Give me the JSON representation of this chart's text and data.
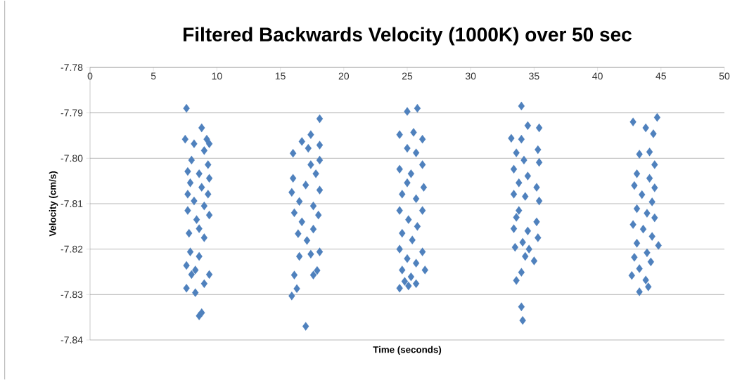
{
  "chart_data": {
    "type": "scatter",
    "title": "Filtered Backwards Velocity (1000K) over 50 sec",
    "xlabel": "Time (seconds)",
    "ylabel": "Velocity (cm/s)",
    "xlim": [
      0,
      50
    ],
    "ylim": [
      -7.84,
      -7.78
    ],
    "xticks": [
      0,
      5,
      10,
      15,
      20,
      25,
      30,
      35,
      40,
      45,
      50
    ],
    "yticks": [
      {
        "value": -7.84,
        "label": "-7.84"
      },
      {
        "value": -7.83,
        "label": "-7.83"
      },
      {
        "value": -7.82,
        "label": "-7.82"
      },
      {
        "value": -7.81,
        "label": "-7.81"
      },
      {
        "value": -7.8,
        "label": "-7.80"
      },
      {
        "value": -7.79,
        "label": "-7.79"
      },
      {
        "value": -7.78,
        "label": "-7.78"
      }
    ],
    "grid": "y",
    "marker": "diamond",
    "series": [
      {
        "color": "#4f81bd",
        "x": [
          7.6,
          8.8,
          7.5,
          9.2,
          8.2,
          9.4,
          9.0,
          8.0,
          9.3,
          7.7,
          8.6,
          9.4,
          7.9,
          8.8,
          7.7,
          9.3,
          8.2,
          9.0,
          7.7,
          9.4,
          8.4,
          7.8,
          9.0,
          8.6,
          7.9,
          8.6,
          7.6,
          8.3,
          8.0,
          9.4,
          9.0,
          7.6,
          8.3,
          8.6,
          8.8,
          18.1,
          17.4,
          16.7,
          18.1,
          16.0,
          17.2,
          18.1,
          17.4,
          16.0,
          17.8,
          17.0,
          15.9,
          18.1,
          16.5,
          17.6,
          16.1,
          18.0,
          16.7,
          17.6,
          16.4,
          17.1,
          18.1,
          16.5,
          17.4,
          17.9,
          17.6,
          16.1,
          16.3,
          15.9,
          17.0,
          25.0,
          25.8,
          24.4,
          25.5,
          26.2,
          25.0,
          25.7,
          26.2,
          24.4,
          25.3,
          25.0,
          26.3,
          24.6,
          25.7,
          24.4,
          26.2,
          25.1,
          25.8,
          24.6,
          25.4,
          24.4,
          26.2,
          25.0,
          25.7,
          24.6,
          26.4,
          25.3,
          24.8,
          25.7,
          24.4,
          25.1,
          34.0,
          34.5,
          35.4,
          33.2,
          34.0,
          35.3,
          33.6,
          34.2,
          35.4,
          33.4,
          34.5,
          33.8,
          35.2,
          33.4,
          34.3,
          35.4,
          33.8,
          33.6,
          35.2,
          33.4,
          34.5,
          35.3,
          34.1,
          33.5,
          34.6,
          34.3,
          35.0,
          34.0,
          33.6,
          34.0,
          34.1,
          42.8,
          44.7,
          43.8,
          44.4,
          43.3,
          44.1,
          44.5,
          43.1,
          44.1,
          42.9,
          44.5,
          43.5,
          44.3,
          43.1,
          43.9,
          44.5,
          42.8,
          43.6,
          44.3,
          43.1,
          44.8,
          43.9,
          42.9,
          44.2,
          43.3,
          42.7,
          43.8,
          44.0,
          43.3
        ],
        "values": [
          -7.789,
          -7.7933,
          -7.7958,
          -7.7958,
          -7.7968,
          -7.7968,
          -7.7983,
          -7.8004,
          -7.8014,
          -7.8029,
          -7.8034,
          -7.8044,
          -7.8054,
          -7.8064,
          -7.8079,
          -7.8079,
          -7.8094,
          -7.8105,
          -7.8115,
          -7.8125,
          -7.8135,
          -7.8165,
          -7.8175,
          -7.8155,
          -7.8206,
          -7.8216,
          -7.8236,
          -7.8246,
          -7.8256,
          -7.8256,
          -7.8276,
          -7.8286,
          -7.8296,
          -7.8347,
          -7.834,
          -7.7913,
          -7.7948,
          -7.7963,
          -7.7971,
          -7.7989,
          -7.7978,
          -7.8004,
          -7.8014,
          -7.8044,
          -7.8034,
          -7.8059,
          -7.8075,
          -7.807,
          -7.8095,
          -7.8105,
          -7.812,
          -7.8125,
          -7.814,
          -7.8156,
          -7.8166,
          -7.8181,
          -7.8206,
          -7.8216,
          -7.8211,
          -7.8247,
          -7.8257,
          -7.8257,
          -7.8287,
          -7.8303,
          -7.837,
          -7.7897,
          -7.789,
          -7.7948,
          -7.7943,
          -7.7958,
          -7.7978,
          -7.7988,
          -7.8014,
          -7.8024,
          -7.8034,
          -7.8054,
          -7.8064,
          -7.8079,
          -7.8089,
          -7.8115,
          -7.8115,
          -7.8135,
          -7.815,
          -7.8165,
          -7.818,
          -7.82,
          -7.8206,
          -7.8221,
          -7.8231,
          -7.8246,
          -7.8246,
          -7.8261,
          -7.8271,
          -7.8276,
          -7.8286,
          -7.8281,
          -7.7885,
          -7.7928,
          -7.7933,
          -7.7956,
          -7.7958,
          -7.7981,
          -7.7988,
          -7.8004,
          -7.8009,
          -7.8024,
          -7.8039,
          -7.8054,
          -7.8064,
          -7.8079,
          -7.8084,
          -7.8094,
          -7.8115,
          -7.813,
          -7.814,
          -7.8155,
          -7.816,
          -7.8175,
          -7.8185,
          -7.8196,
          -7.82,
          -7.8216,
          -7.8226,
          -7.8251,
          -7.8269,
          -7.8327,
          -7.8357,
          -7.792,
          -7.791,
          -7.7933,
          -7.7946,
          -7.7991,
          -7.7986,
          -7.8014,
          -7.8034,
          -7.8044,
          -7.806,
          -7.8065,
          -7.808,
          -7.8096,
          -7.8111,
          -7.8121,
          -7.8131,
          -7.8146,
          -7.8156,
          -7.8172,
          -7.8187,
          -7.8192,
          -7.8208,
          -7.8218,
          -7.8228,
          -7.8243,
          -7.8258,
          -7.8268,
          -7.8283,
          -7.8294
        ]
      }
    ]
  }
}
